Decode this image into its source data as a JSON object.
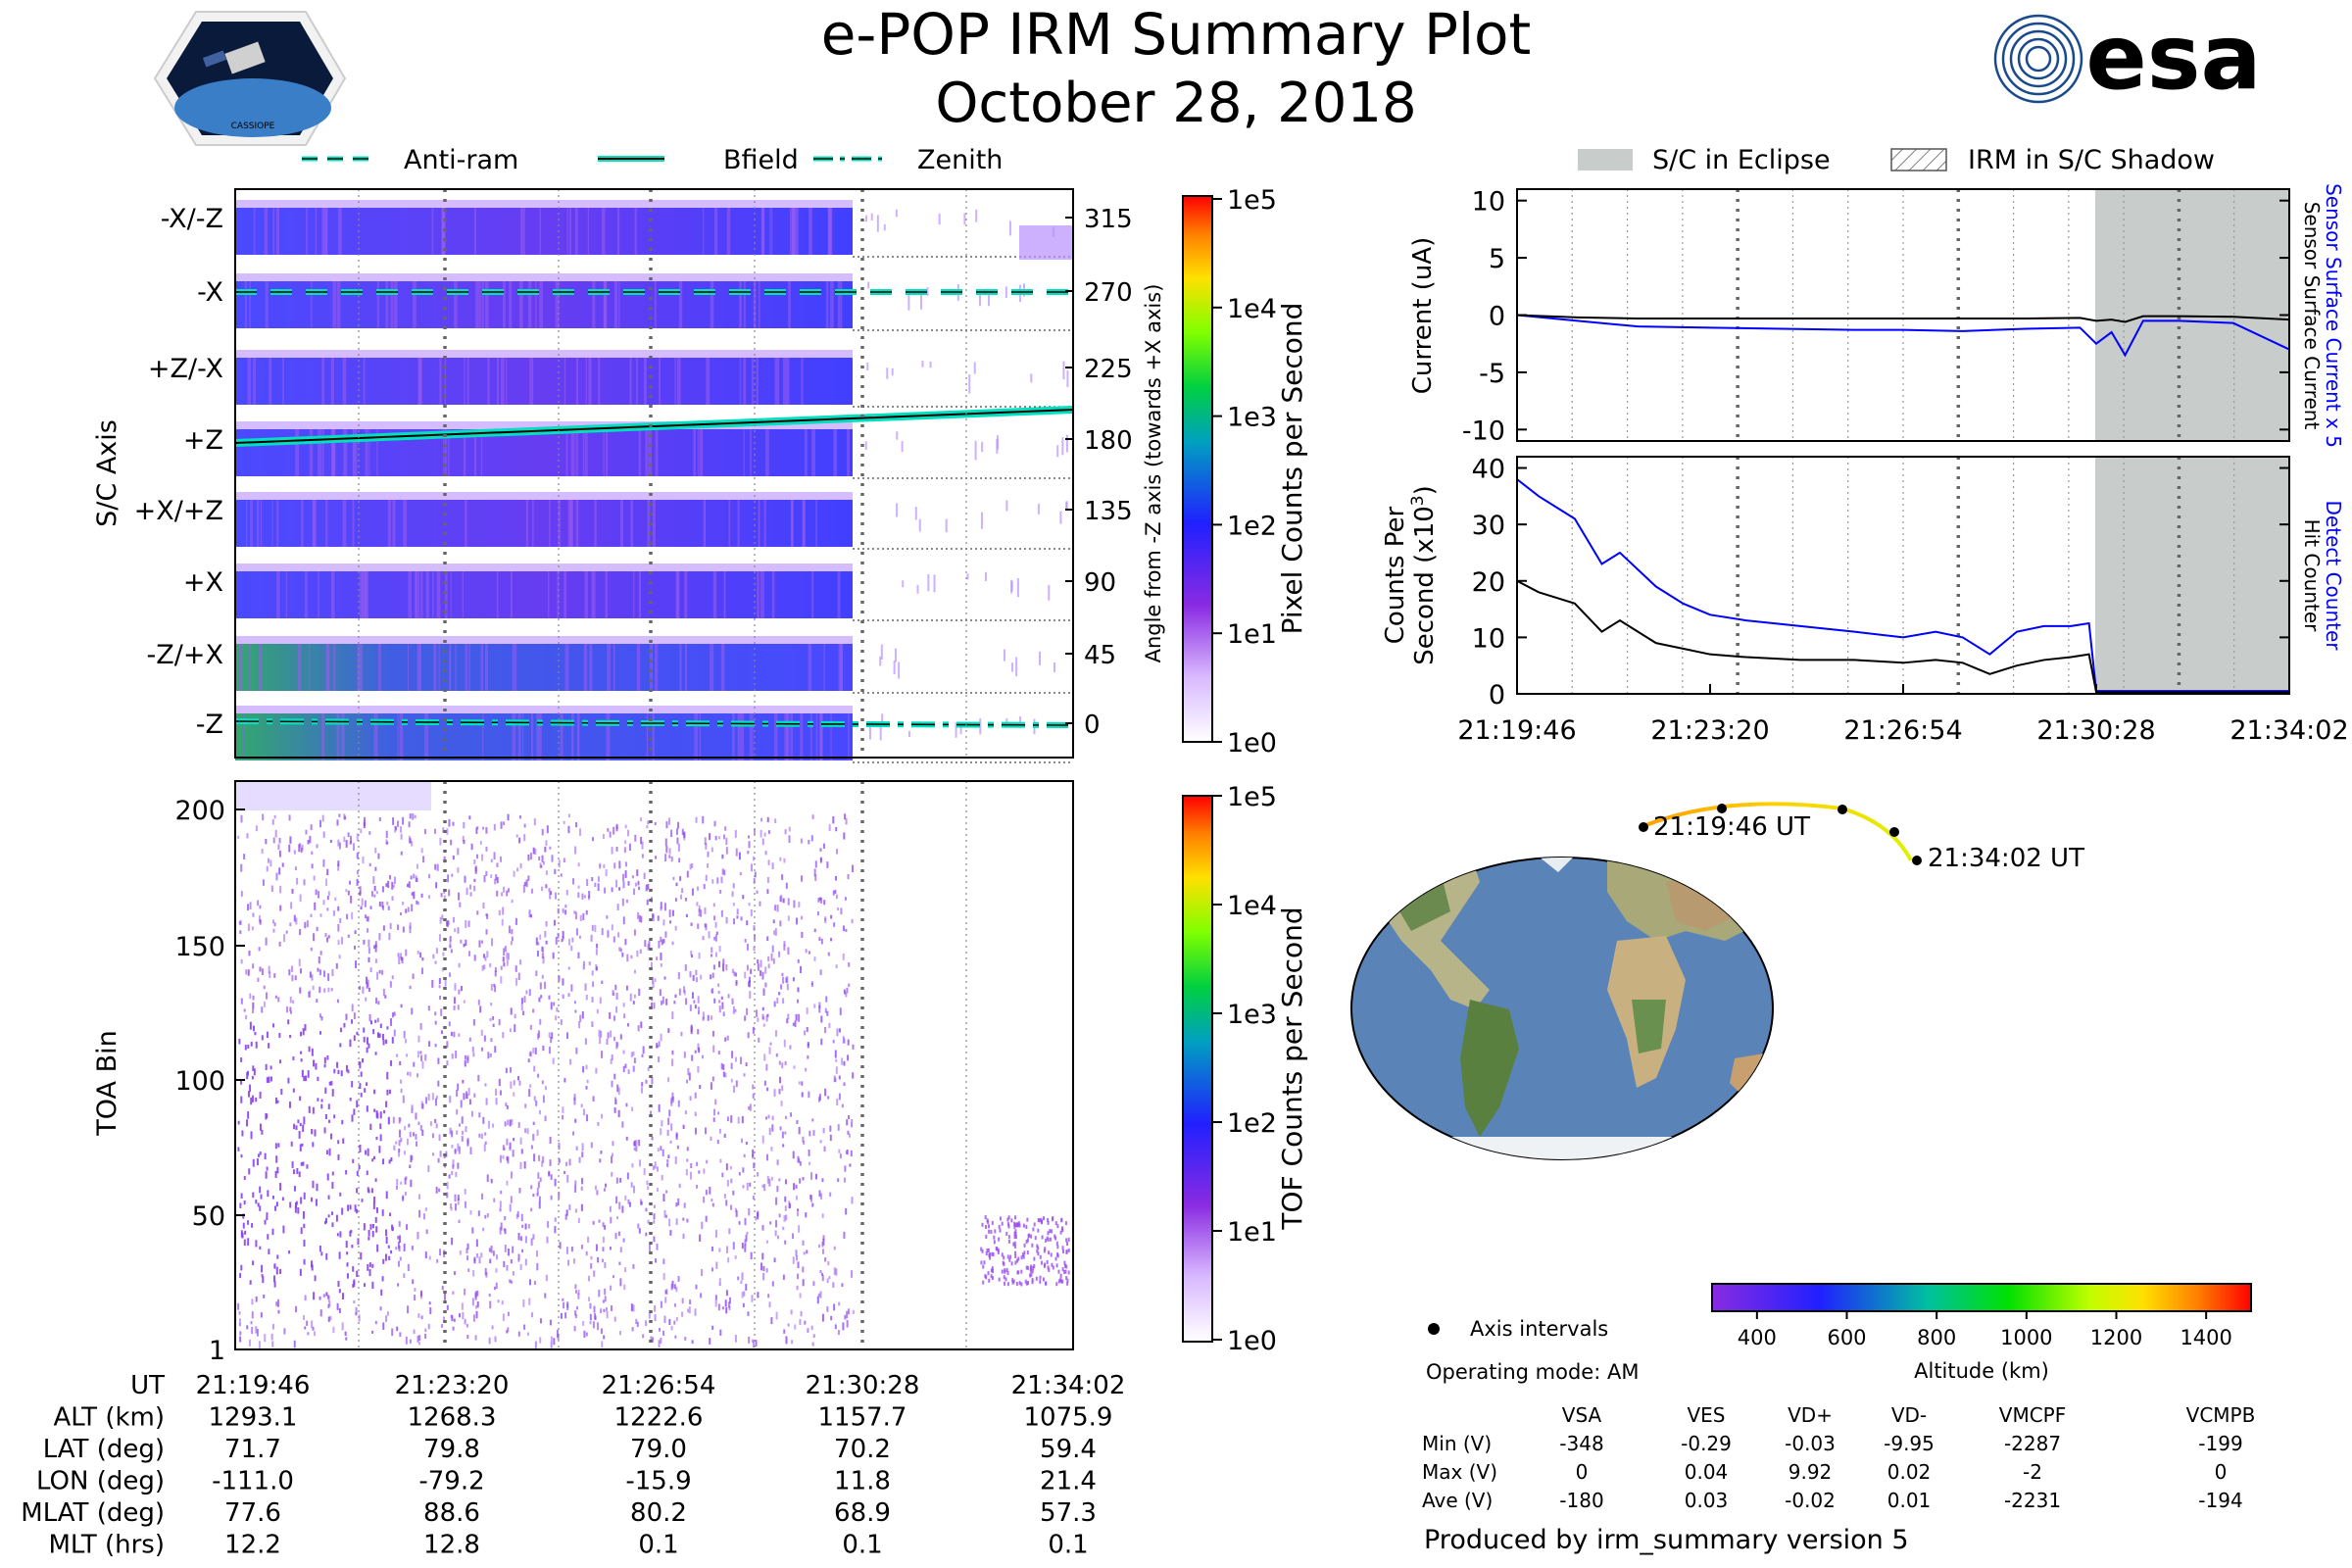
{
  "title": "e-POP IRM Summary Plot",
  "subtitle": "October 28, 2018",
  "logos": {
    "left": "CASSIOPE",
    "right": "esa"
  },
  "colors": {
    "sensor_blue": "#0000ff",
    "hit_black": "#000000",
    "legend_teal": "#00e0c0",
    "eclipse_gray": "#c8ccca",
    "spectrogram_purple": "#8a2be2"
  },
  "top_legend": [
    {
      "label": "Anti-ram",
      "style": "dashed"
    },
    {
      "label": "Bfield",
      "style": "solid"
    },
    {
      "label": "Zenith",
      "style": "dashdot"
    }
  ],
  "eclipse_legend": [
    {
      "label": "S/C in Eclipse",
      "style": "gray-fill"
    },
    {
      "label": "IRM in S/C Shadow",
      "style": "hatched"
    }
  ],
  "time_ticks": [
    "21:19:46",
    "21:23:20",
    "21:26:54",
    "21:30:28",
    "21:34:02"
  ],
  "sc_axis_panel": {
    "ylabel": "S/C Axis",
    "right_label": "Angle from -Z axis (towards +X axis)",
    "rows": [
      {
        "name": "-X/-Z",
        "angle": "315"
      },
      {
        "name": "-X",
        "angle": "270"
      },
      {
        "name": "+Z/-X",
        "angle": "225"
      },
      {
        "name": "+Z",
        "angle": "180"
      },
      {
        "name": "+X/+Z",
        "angle": "135"
      },
      {
        "name": "+X",
        "angle": "90"
      },
      {
        "name": "-Z/+X",
        "angle": "45"
      },
      {
        "name": "-Z",
        "angle": "0"
      }
    ],
    "colorbar_label": "Pixel Counts per Second",
    "colorbar_ticks": [
      "1e5",
      "1e4",
      "1e3",
      "1e2",
      "1e1",
      "1e0"
    ]
  },
  "toa_panel": {
    "ylabel": "TOA Bin",
    "yticks": [
      "200",
      "150",
      "100",
      "50",
      "1"
    ],
    "colorbar_label": "TOF Counts per Second",
    "colorbar_ticks": [
      "1e5",
      "1e4",
      "1e3",
      "1e2",
      "1e1",
      "1e0"
    ]
  },
  "current_panel": {
    "ylabel": "Current (uA)",
    "right_label_blue": "Sensor Surface Current x 5",
    "right_label_black": "Sensor Surface Current",
    "yticks": [
      "10",
      "5",
      "0",
      "-5",
      "-10"
    ]
  },
  "counts_panel": {
    "ylabel_line1": "Counts Per",
    "ylabel_line2": "Second (x10",
    "ylabel_sup": "3",
    "ylabel_end": ")",
    "right_label_blue": "Detect Counter",
    "right_label_black": "Hit Counter",
    "yticks": [
      "40",
      "30",
      "20",
      "10",
      "0"
    ]
  },
  "map": {
    "start_label": "21:19:46 UT",
    "end_label": "21:34:02 UT",
    "colorbar_ticks": [
      "400",
      "600",
      "800",
      "1000",
      "1200",
      "1400"
    ],
    "colorbar_label": "Altitude (km)",
    "legend_label": "Axis intervals",
    "operating_mode": "Operating mode: AM"
  },
  "footer_table": {
    "rows": [
      {
        "label": "UT",
        "values": [
          "21:19:46",
          "21:23:20",
          "21:26:54",
          "21:30:28",
          "21:34:02"
        ]
      },
      {
        "label": "ALT (km)",
        "values": [
          "1293.1",
          "1268.3",
          "1222.6",
          "1157.7",
          "1075.9"
        ]
      },
      {
        "label": "LAT (deg)",
        "values": [
          "71.7",
          "79.8",
          "79.0",
          "70.2",
          "59.4"
        ]
      },
      {
        "label": "LON (deg)",
        "values": [
          "-111.0",
          "-79.2",
          "-15.9",
          "11.8",
          "21.4"
        ]
      },
      {
        "label": "MLAT (deg)",
        "values": [
          "77.6",
          "88.6",
          "80.2",
          "68.9",
          "57.3"
        ]
      },
      {
        "label": "MLT (hrs)",
        "values": [
          "12.2",
          "12.8",
          "0.1",
          "0.1",
          "0.1"
        ]
      }
    ]
  },
  "voltage_table": {
    "headers": [
      "VSA",
      "VES",
      "VD+",
      "VD-",
      "VMCPF",
      "VCMPB"
    ],
    "rows": [
      {
        "label": "Min (V)",
        "values": [
          "-348",
          "-0.29",
          "-0.03",
          "-9.95",
          "-2287",
          "-199"
        ]
      },
      {
        "label": "Max (V)",
        "values": [
          "0",
          "0.04",
          "9.92",
          "0.02",
          "-2",
          "0"
        ]
      },
      {
        "label": "Ave (V)",
        "values": [
          "-180",
          "0.03",
          "-0.02",
          "0.01",
          "-2231",
          "-194"
        ]
      }
    ]
  },
  "produced_by": "Produced by irm_summary version 5",
  "chart_data": [
    {
      "type": "line",
      "title": "",
      "ylabel": "Current (uA)",
      "xlabel": "",
      "ylim": [
        -11,
        11
      ],
      "x": [
        "21:19:46",
        "21:20:53",
        "21:22:00",
        "21:23:20",
        "21:24:40",
        "21:26:00",
        "21:26:54",
        "21:28:00",
        "21:29:10",
        "21:30:10",
        "21:30:28",
        "21:30:45",
        "21:31:00",
        "21:31:20",
        "21:32:00",
        "21:33:00",
        "21:34:02"
      ],
      "series": [
        {
          "name": "Sensor Surface Current x 5",
          "color": "#0000ff",
          "values": [
            0.0,
            -0.5,
            -1.0,
            -1.1,
            -1.2,
            -1.3,
            -1.3,
            -1.4,
            -1.2,
            -1.1,
            -2.5,
            -1.5,
            -3.5,
            -0.5,
            -0.5,
            -0.7,
            -3.0
          ]
        },
        {
          "name": "Sensor Surface Current",
          "color": "#000000",
          "values": [
            0.0,
            -0.2,
            -0.3,
            -0.3,
            -0.3,
            -0.3,
            -0.3,
            -0.3,
            -0.3,
            -0.25,
            -0.5,
            -0.4,
            -0.6,
            -0.1,
            -0.1,
            -0.15,
            -0.4
          ]
        }
      ],
      "shaded_eclipse": [
        "21:30:28",
        "21:34:02"
      ]
    },
    {
      "type": "line",
      "title": "",
      "ylabel": "Counts Per Second (x10^3)",
      "xlabel": "",
      "ylim": [
        0,
        42
      ],
      "x": [
        "21:19:46",
        "21:20:10",
        "21:20:50",
        "21:21:20",
        "21:21:40",
        "21:22:00",
        "21:22:20",
        "21:22:50",
        "21:23:20",
        "21:24:00",
        "21:25:00",
        "21:26:00",
        "21:26:54",
        "21:27:30",
        "21:28:00",
        "21:28:30",
        "21:29:00",
        "21:29:30",
        "21:30:00",
        "21:30:20",
        "21:30:28",
        "21:34:02"
      ],
      "series": [
        {
          "name": "Detect Counter",
          "color": "#0000ff",
          "values": [
            38,
            35,
            31,
            23,
            25,
            22,
            19,
            16,
            14,
            13,
            12,
            11,
            10,
            11,
            10,
            7,
            11,
            12,
            12,
            12.5,
            0.5,
            0.5
          ]
        },
        {
          "name": "Hit Counter",
          "color": "#000000",
          "values": [
            20,
            18,
            16,
            11,
            13,
            11,
            9,
            8,
            7,
            6.5,
            6,
            6,
            5.5,
            6,
            5.5,
            3.5,
            5,
            6,
            6.5,
            7,
            0.3,
            0.3
          ]
        }
      ],
      "shaded_eclipse": [
        "21:30:28",
        "21:34:02"
      ]
    }
  ]
}
